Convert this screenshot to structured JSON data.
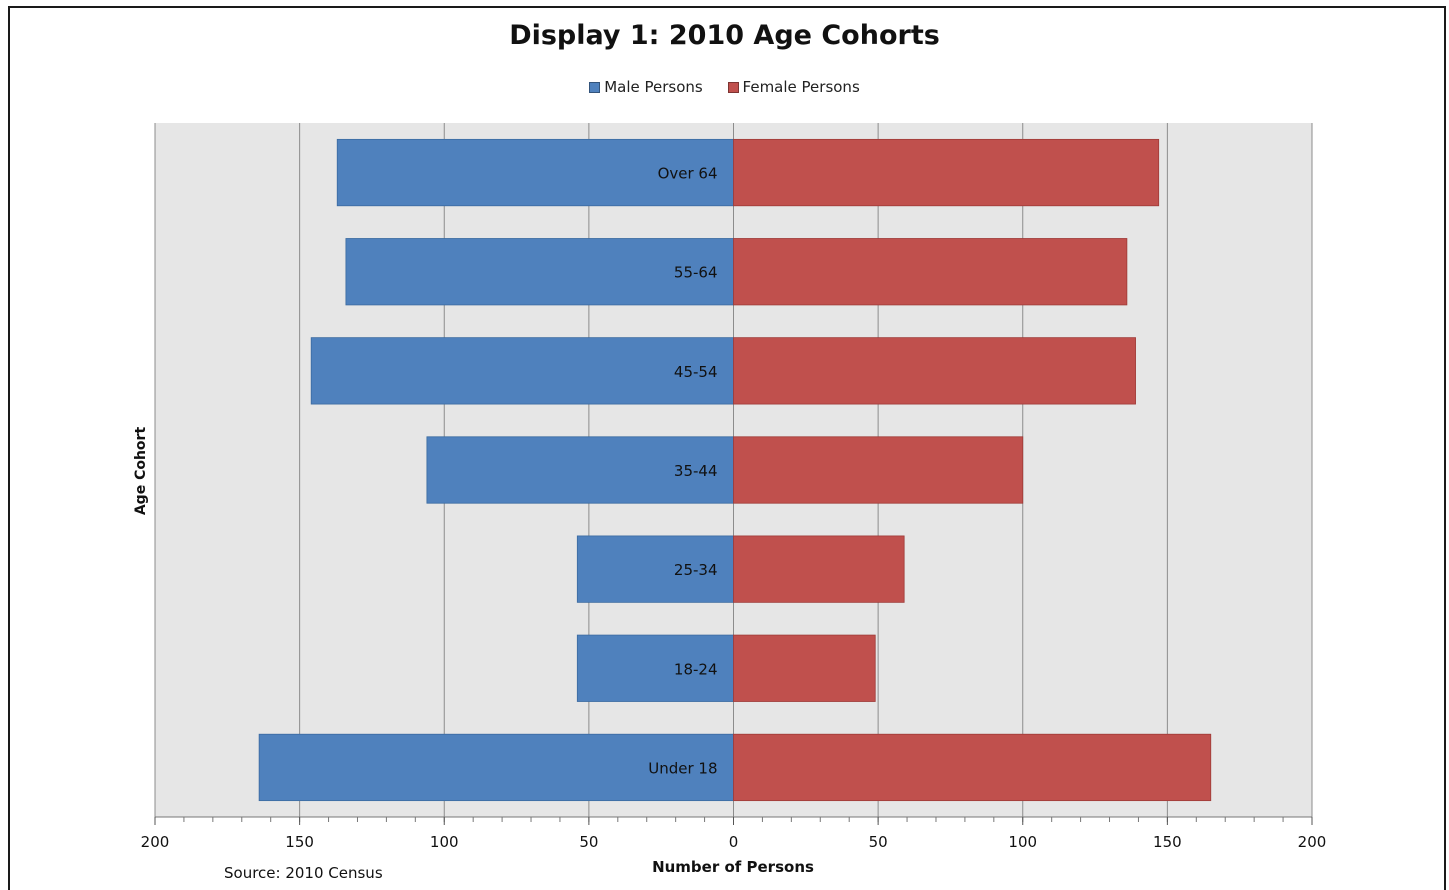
{
  "chart_data": {
    "type": "bar",
    "orientation": "horizontal",
    "title": "Display 1: 2010 Age Cohorts",
    "xlabel": "Number of Persons",
    "ylabel": "Age Cohort",
    "categories": [
      "Over 64",
      "55-64",
      "45-54",
      "35-44",
      "25-34",
      "18-24",
      "Under 18"
    ],
    "series": [
      {
        "name": "Male Persons",
        "color": "#4f81bd",
        "values": [
          137,
          134,
          146,
          106,
          54,
          54,
          164
        ]
      },
      {
        "name": "Female Persons",
        "color": "#c0504d",
        "values": [
          147,
          136,
          139,
          100,
          59,
          49,
          165
        ]
      }
    ],
    "xlim": [
      -200,
      200
    ],
    "xticks": [
      -200,
      -150,
      -100,
      -50,
      0,
      50,
      100,
      150,
      200
    ],
    "xtick_labels": [
      "200",
      "150",
      "100",
      "50",
      "0",
      "50",
      "100",
      "150",
      "200"
    ],
    "grid": true,
    "legend_position": "top-center",
    "source": "Source:  2010 Census",
    "plot_background": "#e6e6e6"
  }
}
